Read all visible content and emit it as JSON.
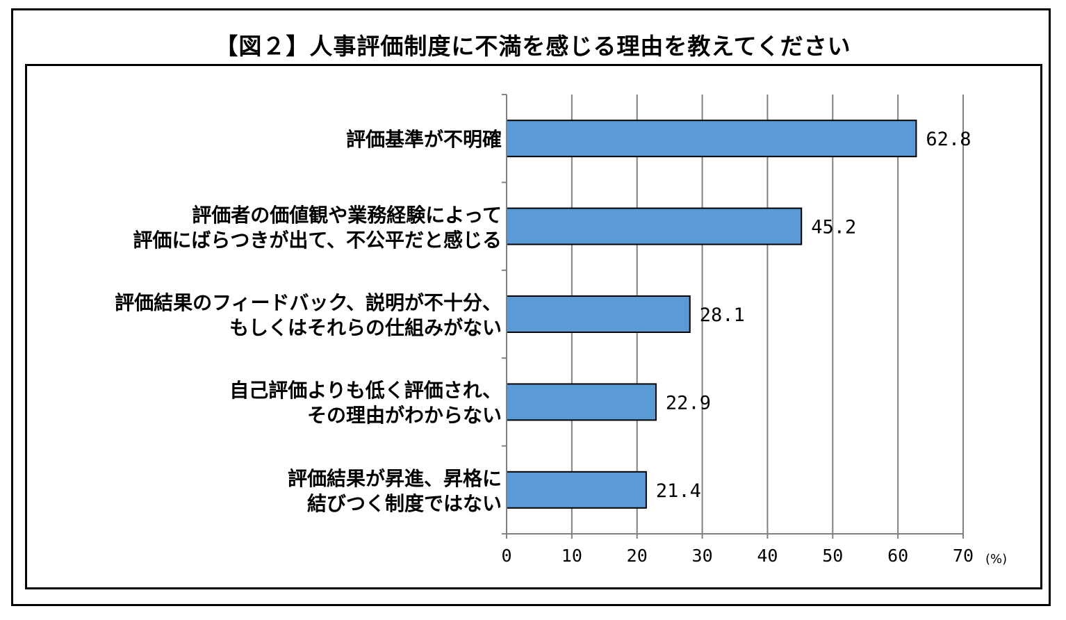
{
  "chart_data": {
    "type": "bar",
    "orientation": "horizontal",
    "title": "【図２】人事評価制度に不満を感じる理由を教えてください",
    "categories": [
      [
        "評価基準が不明確"
      ],
      [
        "評価者の価値観や業務経験によって",
        "評価にばらつきが出て、不公平だと感じる"
      ],
      [
        "評価結果のフィードバック、説明が不十分、",
        "もしくはそれらの仕組みがない"
      ],
      [
        "自己評価よりも低く評価され、",
        "その理由がわからない"
      ],
      [
        "評価結果が昇進、昇格に",
        "結びつく制度ではない"
      ]
    ],
    "values": [
      62.8,
      45.2,
      28.1,
      22.9,
      21.4
    ],
    "value_labels": [
      "62.8",
      "45.2",
      "28.1",
      "22.9",
      "21.4"
    ],
    "xlim": [
      0,
      70
    ],
    "xticks": [
      "0",
      "10",
      "20",
      "30",
      "40",
      "50",
      "60",
      "70"
    ],
    "unit": "(%)",
    "grid": true,
    "bar_color": "#5b9bd5"
  }
}
